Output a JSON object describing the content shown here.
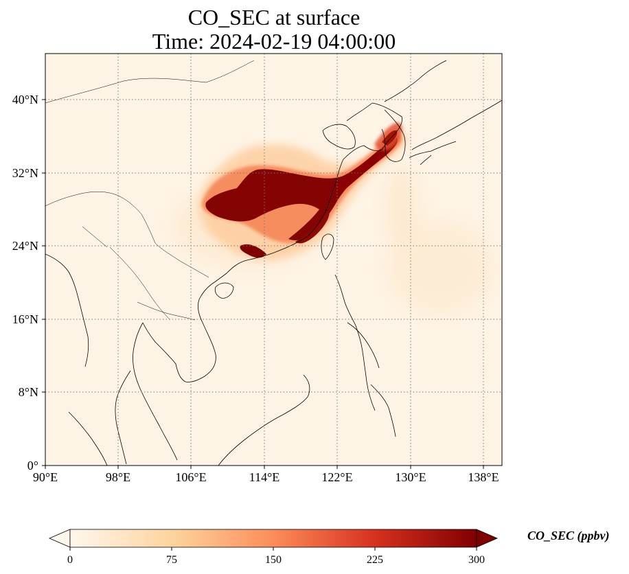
{
  "title": {
    "line1": "CO_SEC at surface",
    "line2": "Time: 2024-02-19 04:00:00"
  },
  "map": {
    "extent": {
      "lon_min": 90,
      "lon_max": 140,
      "lat_min": 0,
      "lat_max": 45
    },
    "gridlines": "dotted",
    "lat_ticks": [
      {
        "value": 40,
        "label": "40°N"
      },
      {
        "value": 32,
        "label": "32°N"
      },
      {
        "value": 24,
        "label": "24°N"
      },
      {
        "value": 16,
        "label": "16°N"
      },
      {
        "value": 8,
        "label": "8°N"
      },
      {
        "value": 0,
        "label": "0°"
      }
    ],
    "lon_ticks": [
      {
        "value": 90,
        "label": "90°E"
      },
      {
        "value": 98,
        "label": "98°E"
      },
      {
        "value": 106,
        "label": "106°E"
      },
      {
        "value": 114,
        "label": "114°E"
      },
      {
        "value": 122,
        "label": "122°E"
      },
      {
        "value": 130,
        "label": "130°E"
      },
      {
        "value": 138,
        "label": "138°E"
      }
    ]
  },
  "colorbar": {
    "label": "CO_SEC (ppbv)",
    "min": 0,
    "max": 300,
    "extend": "both",
    "colormap": "OrRd",
    "colors": [
      "#fff7ec",
      "#fdd49e",
      "#fc8d59",
      "#d7301f",
      "#7f0000"
    ],
    "ticks": [
      {
        "value": 0,
        "label": "0"
      },
      {
        "value": 75,
        "label": "75"
      },
      {
        "value": 150,
        "label": "150"
      },
      {
        "value": 225,
        "label": "225"
      },
      {
        "value": 300,
        "label": "300"
      }
    ]
  }
}
